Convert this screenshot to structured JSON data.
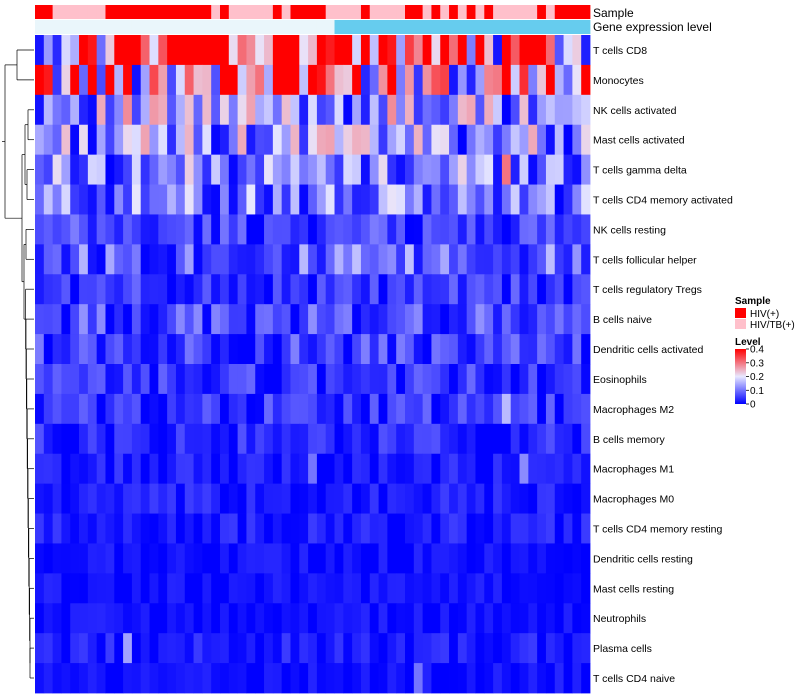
{
  "chart_data": {
    "type": "heatmap",
    "title": "",
    "annotation_tracks": [
      {
        "name": "Sample",
        "label": "Sample"
      },
      {
        "name": "Gene expression level",
        "label": "Gene expression level"
      }
    ],
    "sample_groups": [
      "H",
      "H",
      "P",
      "P",
      "P",
      "P",
      "P",
      "P",
      "H",
      "H",
      "H",
      "H",
      "H",
      "H",
      "H",
      "H",
      "H",
      "H",
      "H",
      "H",
      "P",
      "H",
      "P",
      "P",
      "P",
      "P",
      "P",
      "H",
      "P",
      "H",
      "H",
      "H",
      "H",
      "P",
      "P",
      "P",
      "P",
      "H",
      "P",
      "P",
      "P",
      "P",
      "H",
      "H",
      "P",
      "H",
      "P",
      "H",
      "P",
      "H",
      "P",
      "H",
      "P",
      "P",
      "P",
      "P",
      "P",
      "H",
      "P",
      "H",
      "H",
      "H",
      "H"
    ],
    "gene_expression_split": 34,
    "rows": [
      "T cells CD8",
      "Monocytes",
      "NK cells activated",
      "Mast cells activated",
      "T cells gamma delta",
      "T cells CD4 memory activated",
      "NK cells resting",
      "T cells follicular helper",
      "T cells regulatory  Tregs",
      "B cells naive",
      "Dendritic cells activated",
      "Eosinophils",
      "Macrophages M2",
      "B cells memory",
      "Macrophages M1",
      "Macrophages M0",
      "T cells CD4 memory resting",
      "Dendritic cells resting",
      "Mast cells resting",
      "Neutrophils",
      "Plasma cells",
      "T cells CD4 naive"
    ],
    "row_baseline": [
      0.33,
      0.26,
      0.14,
      0.13,
      0.11,
      0.1,
      0.05,
      0.08,
      0.04,
      0.06,
      0.05,
      0.04,
      0.04,
      0.03,
      0.02,
      0.02,
      0.02,
      0.01,
      0.01,
      0.01,
      0.02,
      0.01
    ],
    "highlights": [
      {
        "row": 0,
        "col": 5,
        "value": 0.4
      },
      {
        "row": 0,
        "col": 6,
        "value": 0.38
      },
      {
        "row": 0,
        "col": 20,
        "value": 0.4
      },
      {
        "row": 0,
        "col": 37,
        "value": 0.4
      },
      {
        "row": 0,
        "col": 40,
        "value": 0.38
      },
      {
        "row": 0,
        "col": 56,
        "value": 0.4
      },
      {
        "row": 1,
        "col": 27,
        "value": 0.42
      },
      {
        "row": 1,
        "col": 28,
        "value": 0.42
      },
      {
        "row": 1,
        "col": 29,
        "value": 0.4
      },
      {
        "row": 1,
        "col": 40,
        "value": 0.4
      },
      {
        "row": 1,
        "col": 45,
        "value": 0.33
      },
      {
        "row": 1,
        "col": 55,
        "value": 0.36
      },
      {
        "row": 2,
        "col": 53,
        "value": 0.0
      },
      {
        "row": 3,
        "col": 33,
        "value": 0.26
      },
      {
        "row": 4,
        "col": 48,
        "value": 0.22
      },
      {
        "row": 4,
        "col": 53,
        "value": 0.3
      },
      {
        "row": 5,
        "col": 24,
        "value": 0.2
      },
      {
        "row": 12,
        "col": 53,
        "value": 0.16
      },
      {
        "row": 14,
        "col": 31,
        "value": 0.1
      },
      {
        "row": 14,
        "col": 55,
        "value": 0.12
      },
      {
        "row": 20,
        "col": 10,
        "value": 0.14
      },
      {
        "row": 21,
        "col": 43,
        "value": 0.1
      }
    ],
    "n_columns": 63,
    "value_range": [
      0,
      0.4
    ],
    "legends": [
      {
        "title": "Sample",
        "entries": [
          {
            "label": "HIV(+)",
            "color": "#ff0000"
          },
          {
            "label": "HIV/TB(+)",
            "color": "#ffc0cb"
          }
        ]
      },
      {
        "title": "Level",
        "ticks": [
          "0.4",
          "0.3",
          "0.2",
          "0.1",
          "0"
        ],
        "tick_values": [
          0.4,
          0.3,
          0.2,
          0.1,
          0
        ]
      }
    ],
    "colors": {
      "low": "#0000ff",
      "mid": "#e8e8ff",
      "high": "#ff0000",
      "sample_hiv": "#ff0000",
      "sample_hivtb": "#ffc0cb",
      "expr_low": "#eaf6fb",
      "expr_high": "#66ccee"
    }
  }
}
